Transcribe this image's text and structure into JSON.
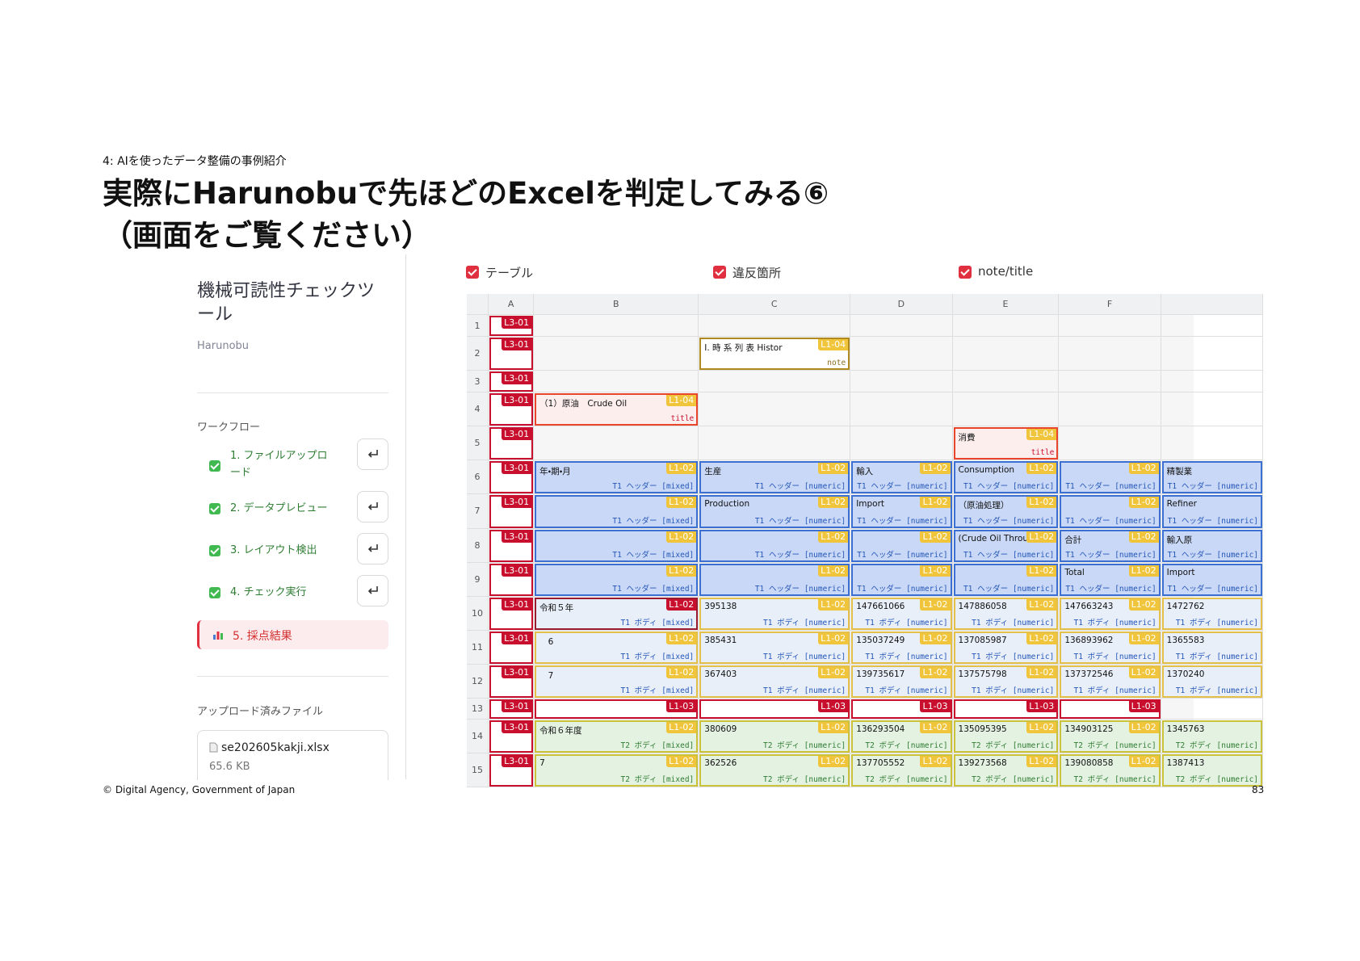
{
  "slide": {
    "section": "4: AIを使ったデータ整備の事例紹介",
    "title": [
      "実際にHarunobuで先ほどのExcelを判定してみる⑥",
      "（画面をご覧ください）"
    ],
    "footer": "© Digital Agency, Government of Japan",
    "page_number": 83
  },
  "sidebar": {
    "app_title": "機械可読性チェックツール",
    "app_subtitle": "Harunobu",
    "workflow_heading": "ワークフロー",
    "steps": [
      "1. ファイルアップロード",
      "2. データプレビュー",
      "3. レイアウト検出",
      "4. チェック実行"
    ],
    "active_step": "5. 採点結果",
    "uploaded_heading": "アップロード済みファイル",
    "file_name": "se202605kakji.xlsx",
    "file_size": "65.6 KB"
  },
  "toggles": [
    "テーブル",
    "違反箇所",
    "note/title"
  ],
  "sheet": {
    "columns": [
      "A",
      "B",
      "C",
      "D",
      "E",
      "F"
    ],
    "badge_colors": {
      "L3-01": "#c8102e",
      "L1-02": "#f0c53c",
      "L1-03": "#c8102e",
      "L1-04": "#f0c53c"
    },
    "rows": [
      {
        "num": 1,
        "cells": [
          {
            "badge": "L3-01"
          }
        ]
      },
      {
        "num": 2,
        "cells": [
          {
            "badge": "L3-01"
          },
          null,
          {
            "text": "Ⅰ. 時 系 列 表 Histor",
            "badge": "L1-04",
            "tag": "note",
            "fill": "#ffffff",
            "border": "#b08a1e",
            "tag_color": "#8a6d1e"
          }
        ]
      },
      {
        "num": 3,
        "cells": [
          {
            "badge": "L3-01"
          }
        ]
      },
      {
        "num": 4,
        "cells": [
          {
            "badge": "L3-01"
          },
          {
            "text": "（1）原油　Crude Oil",
            "badge": "L1-04",
            "tag": "title",
            "fill": "#fdeeee",
            "border": "#e8452c",
            "tag_color": "#c8102e"
          }
        ]
      },
      {
        "num": 5,
        "cells": [
          {
            "badge": "L3-01"
          },
          null,
          null,
          null,
          {
            "text": "消費",
            "badge": "L1-04",
            "tag": "title",
            "fill": "#fdeeee",
            "border": "#e8452c",
            "tag_color": "#c8102e"
          }
        ]
      },
      {
        "num": 6,
        "fill": "#c9d8f6",
        "border": "#3b6fd1",
        "tag_color": "#2456b8",
        "cells": [
          {
            "badge": "L3-01"
          },
          {
            "text": "年・期・月",
            "badge": "L1-02",
            "tag": "T1 ヘッダー [mixed]"
          },
          {
            "text": "生産",
            "badge": "L1-02",
            "tag": "T1 ヘッダー [numeric]"
          },
          {
            "text": "輸入",
            "badge": "L1-02",
            "tag": "T1 ヘッダー [numeric]"
          },
          {
            "text": "Consumption",
            "badge": "L1-02",
            "tag": "T1 ヘッダー [numeric]"
          },
          {
            "badge": "L1-02",
            "tag": "T1 ヘッダー [numeric]"
          },
          {
            "text": "精製業",
            "tag": "T1 ヘッダー [numeric]"
          }
        ]
      },
      {
        "num": 7,
        "fill": "#c9d8f6",
        "border": "#3b6fd1",
        "tag_color": "#2456b8",
        "cells": [
          {
            "badge": "L3-01"
          },
          {
            "badge": "L1-02",
            "tag": "T1 ヘッダー [mixed]"
          },
          {
            "text": "Production",
            "badge": "L1-02",
            "tag": "T1 ヘッダー [numeric]"
          },
          {
            "text": "Import",
            "badge": "L1-02",
            "tag": "T1 ヘッダー [numeric]"
          },
          {
            "text": "（原油処理）",
            "badge": "L1-02",
            "tag": "T1 ヘッダー [numeric]"
          },
          {
            "badge": "L1-02",
            "tag": "T1 ヘッダー [numeric]"
          },
          {
            "text": "Refiner",
            "tag": "T1 ヘッダー [numeric]"
          }
        ]
      },
      {
        "num": 8,
        "fill": "#c9d8f6",
        "border": "#3b6fd1",
        "tag_color": "#2456b8",
        "cells": [
          {
            "badge": "L3-01"
          },
          {
            "badge": "L1-02",
            "tag": "T1 ヘッダー [mixed]"
          },
          {
            "badge": "L1-02",
            "tag": "T1 ヘッダー [numeric]"
          },
          {
            "badge": "L1-02",
            "tag": "T1 ヘッダー [numeric]"
          },
          {
            "text": "(Crude Oil Throu",
            "badge": "L1-02",
            "tag": "T1 ヘッダー [numeric]"
          },
          {
            "text": "合計",
            "badge": "L1-02",
            "tag": "T1 ヘッダー [numeric]"
          },
          {
            "text": "輸入原",
            "tag": "T1 ヘッダー [numeric]"
          }
        ]
      },
      {
        "num": 9,
        "fill": "#c9d8f6",
        "border": "#3b6fd1",
        "tag_color": "#2456b8",
        "cells": [
          {
            "badge": "L3-01"
          },
          {
            "badge": "L1-02",
            "tag": "T1 ヘッダー [mixed]"
          },
          {
            "badge": "L1-02",
            "tag": "T1 ヘッダー [numeric]"
          },
          {
            "badge": "L1-02",
            "tag": "T1 ヘッダー [numeric]"
          },
          {
            "badge": "L1-02",
            "tag": "T1 ヘッダー [numeric]"
          },
          {
            "text": "Total",
            "badge": "L1-02",
            "tag": "T1 ヘッダー [numeric]"
          },
          {
            "text": "Import",
            "tag": "T1 ヘッダー [numeric]"
          }
        ]
      },
      {
        "num": 10,
        "fill": "#e8eff9",
        "border": "#e3c04a",
        "tag_color": "#2456b8",
        "cells": [
          {
            "badge": "L3-01"
          },
          {
            "text": "令和５年",
            "badge": "L1-02",
            "tag": "T1 ボディ [mixed]",
            "border": "#9b1b30",
            "badge_color": "#c8102e"
          },
          {
            "text": "395138",
            "badge": "L1-02",
            "tag": "T1 ボディ [numeric]"
          },
          {
            "text": "147661066",
            "badge": "L1-02",
            "tag": "T1 ボディ [numeric]"
          },
          {
            "text": "147886058",
            "badge": "L1-02",
            "tag": "T1 ボディ [numeric]"
          },
          {
            "text": "147663243",
            "badge": "L1-02",
            "tag": "T1 ボディ [numeric]"
          },
          {
            "text": "1472762",
            "tag": "T1 ボディ [numeric]"
          }
        ]
      },
      {
        "num": 11,
        "fill": "#e8eff9",
        "border": "#e3c04a",
        "tag_color": "#2456b8",
        "cells": [
          {
            "badge": "L3-01"
          },
          {
            "text": "　6",
            "badge": "L1-02",
            "tag": "T1 ボディ [mixed]"
          },
          {
            "text": "385431",
            "badge": "L1-02",
            "tag": "T1 ボディ [numeric]"
          },
          {
            "text": "135037249",
            "badge": "L1-02",
            "tag": "T1 ボディ [numeric]"
          },
          {
            "text": "137085987",
            "badge": "L1-02",
            "tag": "T1 ボディ [numeric]"
          },
          {
            "text": "136893962",
            "badge": "L1-02",
            "tag": "T1 ボディ [numeric]"
          },
          {
            "text": "1365583",
            "tag": "T1 ボディ [numeric]"
          }
        ]
      },
      {
        "num": 12,
        "fill": "#e8eff9",
        "border": "#e3c04a",
        "tag_color": "#2456b8",
        "cells": [
          {
            "badge": "L3-01"
          },
          {
            "text": "　7",
            "badge": "L1-02",
            "tag": "T1 ボディ [mixed]"
          },
          {
            "text": "367403",
            "badge": "L1-02",
            "tag": "T1 ボディ [numeric]"
          },
          {
            "text": "139735617",
            "badge": "L1-02",
            "tag": "T1 ボディ [numeric]"
          },
          {
            "text": "137575798",
            "badge": "L1-02",
            "tag": "T1 ボディ [numeric]"
          },
          {
            "text": "137372546",
            "badge": "L1-02",
            "tag": "T1 ボディ [numeric]"
          },
          {
            "text": "1370240",
            "tag": "T1 ボディ [numeric]"
          }
        ]
      },
      {
        "num": 13,
        "fill": "#ffffff",
        "border": "#c8102e",
        "cells": [
          {
            "badge": "L3-01"
          },
          {
            "badge": "L1-03"
          },
          {
            "badge": "L1-03"
          },
          {
            "badge": "L1-03"
          },
          {
            "badge": "L1-03"
          },
          {
            "badge": "L1-03"
          }
        ]
      },
      {
        "num": 14,
        "fill": "#e4f2e2",
        "border": "#c9c23a",
        "tag_color": "#2f7d32",
        "cells": [
          {
            "badge": "L3-01"
          },
          {
            "text": "令和６年度",
            "badge": "L1-02",
            "tag": "T2 ボディ [mixed]"
          },
          {
            "text": "380609",
            "badge": "L1-02",
            "tag": "T2 ボディ [numeric]"
          },
          {
            "text": "136293504",
            "badge": "L1-02",
            "tag": "T2 ボディ [numeric]"
          },
          {
            "text": "135095395",
            "badge": "L1-02",
            "tag": "T2 ボディ [numeric]"
          },
          {
            "text": "134903125",
            "badge": "L1-02",
            "tag": "T2 ボディ [numeric]"
          },
          {
            "text": "1345763",
            "tag": "T2 ボディ [numeric]"
          }
        ]
      },
      {
        "num": 15,
        "fill": "#e4f2e2",
        "border": "#c9c23a",
        "tag_color": "#2f7d32",
        "cells": [
          {
            "badge": "L3-01"
          },
          {
            "text": "7",
            "badge": "L1-02",
            "tag": "T2 ボディ [mixed]"
          },
          {
            "text": "362526",
            "badge": "L1-02",
            "tag": "T2 ボディ [numeric]"
          },
          {
            "text": "137705552",
            "badge": "L1-02",
            "tag": "T2 ボディ [numeric]"
          },
          {
            "text": "139273568",
            "badge": "L1-02",
            "tag": "T2 ボディ [numeric]"
          },
          {
            "text": "139080858",
            "badge": "L1-02",
            "tag": "T2 ボディ [numeric]"
          },
          {
            "text": "1387413",
            "tag": "T2 ボディ [numeric]"
          }
        ]
      }
    ]
  }
}
